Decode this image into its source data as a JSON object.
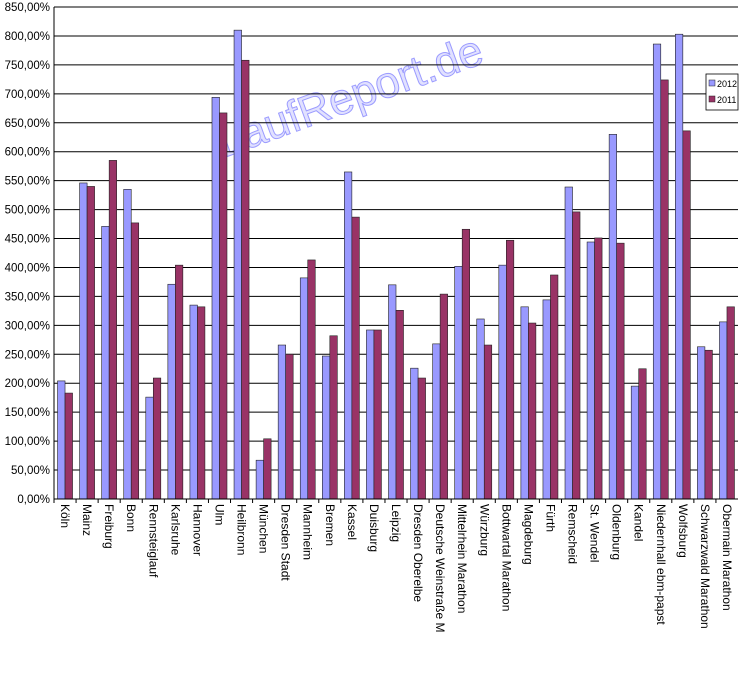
{
  "chart_data": {
    "type": "bar",
    "watermark": "LaufReport.de",
    "categories": [
      "Köln",
      "Mainz",
      "Freiburg",
      "Bonn",
      "Rennsteiglauf",
      "Karlsruhe",
      "Hannover",
      "Ulm",
      "Heilbronn",
      "München",
      "Dresden Stadt",
      "Mannheim",
      "Bremen",
      "Kassel",
      "Duisburg",
      "Leipzig",
      "Dresden Oberelbe",
      "Deutsche Weinstraße M",
      "Mittelrhein Marathon",
      "Würzburg",
      "Bottwartal Marathon",
      "Magdeburg",
      "Fürth",
      "Remscheid",
      "St. Wendel",
      "Oldenburg",
      "Kandel",
      "Niedernhall ebm-papst",
      "Wolfsburg",
      "Schwarzwald Marathon",
      "Obermain Marathon"
    ],
    "series": [
      {
        "name": "2012",
        "color": "#9999ff",
        "values": [
          204,
          546,
          471,
          535,
          176,
          371,
          335,
          694,
          810,
          67,
          266,
          382,
          247,
          565,
          292,
          370,
          226,
          268,
          402,
          311,
          404,
          332,
          344,
          539,
          444,
          630,
          195,
          786,
          803,
          263,
          306
        ]
      },
      {
        "name": "2011",
        "color": "#993366",
        "values": [
          183,
          540,
          585,
          477,
          209,
          404,
          332,
          667,
          758,
          104,
          250,
          413,
          282,
          487,
          292,
          326,
          209,
          354,
          466,
          266,
          447,
          304,
          387,
          496,
          451,
          442,
          225,
          724,
          636,
          257,
          332
        ]
      }
    ],
    "ylim": [
      0,
      850
    ],
    "yticks": [
      {
        "value": 0,
        "label": "0,00%"
      },
      {
        "value": 50,
        "label": "50,00%"
      },
      {
        "value": 100,
        "label": "100,00%"
      },
      {
        "value": 150,
        "label": "150,00%"
      },
      {
        "value": 200,
        "label": "200,00%"
      },
      {
        "value": 250,
        "label": "250,00%"
      },
      {
        "value": 300,
        "label": "300,00%"
      },
      {
        "value": 350,
        "label": "350,00%"
      },
      {
        "value": 400,
        "label": "400,00%"
      },
      {
        "value": 450,
        "label": "450,00%"
      },
      {
        "value": 500,
        "label": "500,00%"
      },
      {
        "value": 550,
        "label": "550,00%"
      },
      {
        "value": 600,
        "label": "600,00%"
      },
      {
        "value": 650,
        "label": "650,00%"
      },
      {
        "value": 700,
        "label": "700,00%"
      },
      {
        "value": 750,
        "label": "750,00%"
      },
      {
        "value": 800,
        "label": "800,00%"
      },
      {
        "value": 850,
        "label": "850,00%"
      }
    ],
    "grid": true,
    "legend": "right"
  }
}
